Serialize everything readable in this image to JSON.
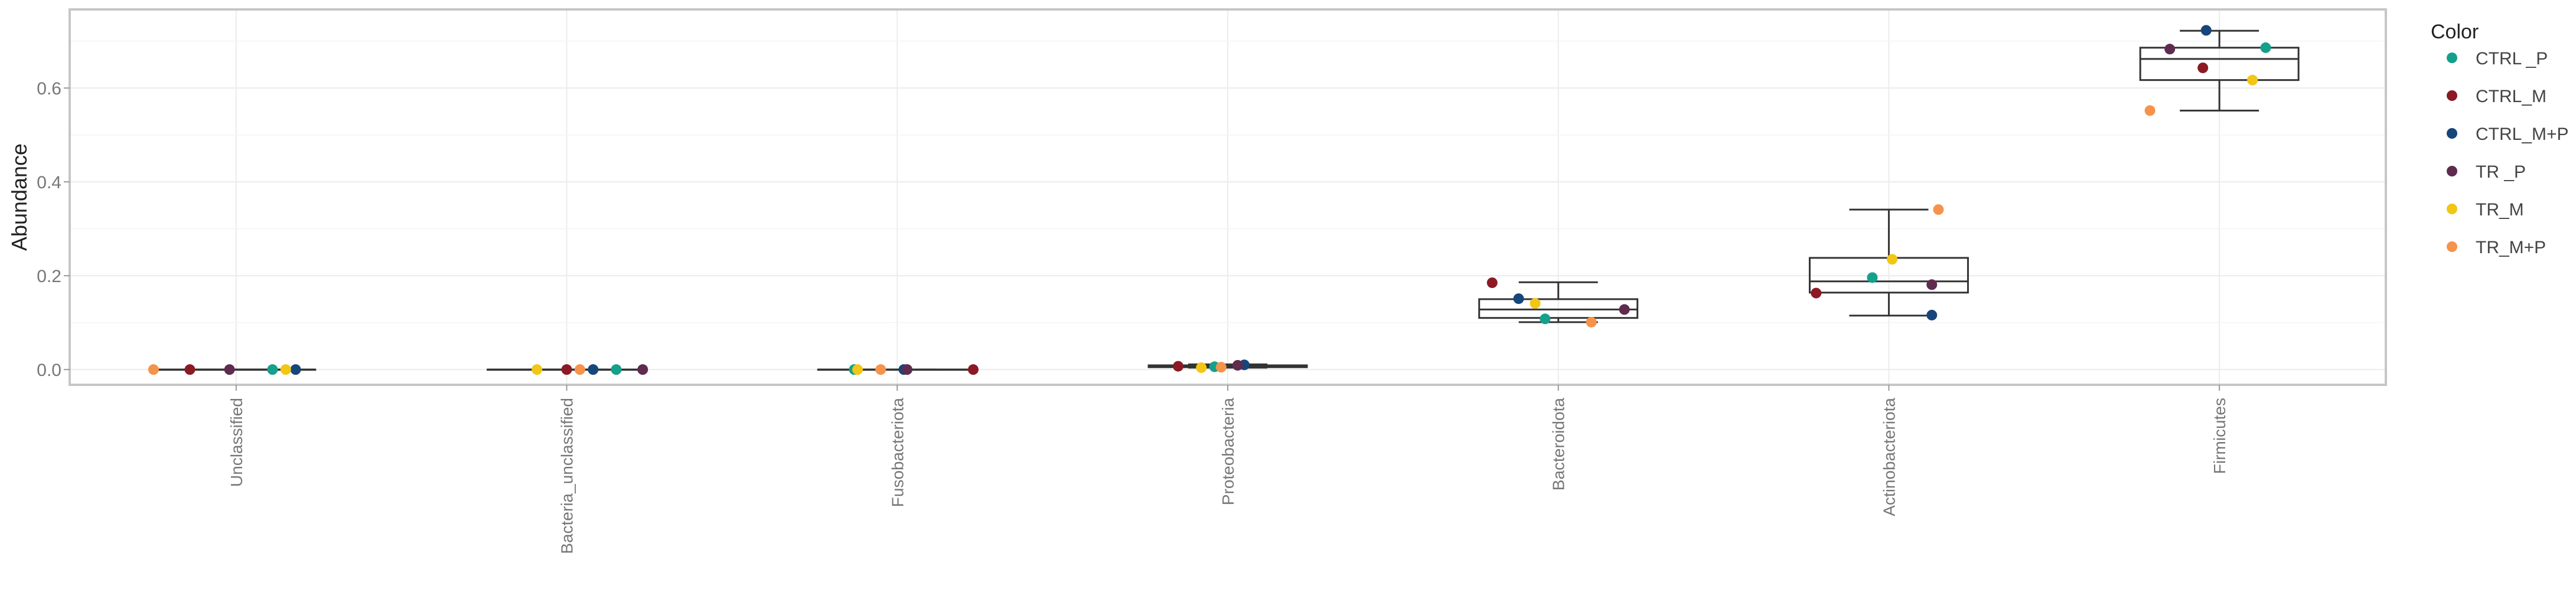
{
  "chart_data": {
    "type": "boxplot",
    "categories": [
      "Unclassified",
      "Bacteria_unclassified",
      "Fusobacteriota",
      "Proteobacteria",
      "Bacteroidota",
      "Actinobacteriota",
      "Firmicutes"
    ],
    "ylabel": "Abundance",
    "xlabel": "",
    "ylim": [
      -0.03,
      0.765
    ],
    "yticks": [
      "0.0",
      "0.2",
      "0.4",
      "0.6"
    ],
    "grid": true,
    "legend": {
      "title": "Color",
      "position": "right",
      "entries": [
        {
          "name": "CTRL _P",
          "color": "#14a08a"
        },
        {
          "name": "CTRL_M",
          "color": "#8b1a24"
        },
        {
          "name": "CTRL_M+P",
          "color": "#16467a"
        },
        {
          "name": "TR _P",
          "color": "#5f2b4e"
        },
        {
          "name": "TR_M",
          "color": "#f2c614"
        },
        {
          "name": "TR_M+P",
          "color": "#f5934a"
        }
      ]
    },
    "boxes": [
      {
        "category": "Unclassified",
        "min": 0.0,
        "q1": 0.0,
        "median": 0.0,
        "q3": 0.0,
        "max": 0.0
      },
      {
        "category": "Bacteria_unclassified",
        "min": 0.0,
        "q1": 0.0,
        "median": 0.0,
        "q3": 0.0,
        "max": 0.0
      },
      {
        "category": "Fusobacteriota",
        "min": 0.0,
        "q1": 0.0,
        "median": 0.0,
        "q3": 0.0,
        "max": 0.0
      },
      {
        "category": "Proteobacteria",
        "min": 0.004,
        "q1": 0.005,
        "median": 0.007,
        "q3": 0.009,
        "max": 0.011
      },
      {
        "category": "Bacteroidota",
        "min": 0.101,
        "q1": 0.11,
        "median": 0.128,
        "q3": 0.15,
        "max": 0.186
      },
      {
        "category": "Actinobacteriota",
        "min": 0.115,
        "q1": 0.164,
        "median": 0.188,
        "q3": 0.238,
        "max": 0.341
      },
      {
        "category": "Firmicutes",
        "min": 0.552,
        "q1": 0.617,
        "median": 0.662,
        "q3": 0.686,
        "max": 0.722
      }
    ],
    "points": [
      {
        "category": "Unclassified",
        "group": "CTRL _P",
        "x_offset": 0.11,
        "value": 0.0
      },
      {
        "category": "Unclassified",
        "group": "CTRL_M",
        "x_offset": -0.14,
        "value": 0.0
      },
      {
        "category": "Unclassified",
        "group": "CTRL_M+P",
        "x_offset": 0.18,
        "value": 0.0
      },
      {
        "category": "Unclassified",
        "group": "TR _P",
        "x_offset": -0.02,
        "value": 0.0
      },
      {
        "category": "Unclassified",
        "group": "TR_M",
        "x_offset": 0.15,
        "value": 0.0
      },
      {
        "category": "Unclassified",
        "group": "TR_M+P",
        "x_offset": -0.25,
        "value": 0.0
      },
      {
        "category": "Bacteria_unclassified",
        "group": "CTRL _P",
        "x_offset": 0.15,
        "value": 0.0
      },
      {
        "category": "Bacteria_unclassified",
        "group": "CTRL_M",
        "x_offset": 0.0,
        "value": 0.0
      },
      {
        "category": "Bacteria_unclassified",
        "group": "CTRL_M+P",
        "x_offset": 0.08,
        "value": 0.0
      },
      {
        "category": "Bacteria_unclassified",
        "group": "TR _P",
        "x_offset": 0.23,
        "value": 0.0
      },
      {
        "category": "Bacteria_unclassified",
        "group": "TR_M",
        "x_offset": -0.09,
        "value": 0.0
      },
      {
        "category": "Bacteria_unclassified",
        "group": "TR_M+P",
        "x_offset": 0.04,
        "value": 0.0
      },
      {
        "category": "Fusobacteriota",
        "group": "CTRL _P",
        "x_offset": -0.13,
        "value": 0.0
      },
      {
        "category": "Fusobacteriota",
        "group": "CTRL_M",
        "x_offset": 0.23,
        "value": 0.0
      },
      {
        "category": "Fusobacteriota",
        "group": "CTRL_M+P",
        "x_offset": 0.02,
        "value": 0.0
      },
      {
        "category": "Fusobacteriota",
        "group": "TR _P",
        "x_offset": 0.03,
        "value": 0.0
      },
      {
        "category": "Fusobacteriota",
        "group": "TR_M",
        "x_offset": -0.12,
        "value": 0.0
      },
      {
        "category": "Fusobacteriota",
        "group": "TR_M+P",
        "x_offset": -0.05,
        "value": 0.0
      },
      {
        "category": "Proteobacteria",
        "group": "CTRL _P",
        "x_offset": -0.04,
        "value": 0.006
      },
      {
        "category": "Proteobacteria",
        "group": "CTRL_M",
        "x_offset": -0.15,
        "value": 0.007
      },
      {
        "category": "Proteobacteria",
        "group": "CTRL_M+P",
        "x_offset": 0.05,
        "value": 0.01
      },
      {
        "category": "Proteobacteria",
        "group": "TR _P",
        "x_offset": 0.03,
        "value": 0.009
      },
      {
        "category": "Proteobacteria",
        "group": "TR_M",
        "x_offset": -0.08,
        "value": 0.004
      },
      {
        "category": "Proteobacteria",
        "group": "TR_M+P",
        "x_offset": -0.02,
        "value": 0.005
      },
      {
        "category": "Bacteroidota",
        "group": "CTRL _P",
        "x_offset": -0.04,
        "value": 0.108
      },
      {
        "category": "Bacteroidota",
        "group": "CTRL_M",
        "x_offset": -0.2,
        "value": 0.185
      },
      {
        "category": "Bacteroidota",
        "group": "CTRL_M+P",
        "x_offset": -0.12,
        "value": 0.151
      },
      {
        "category": "Bacteroidota",
        "group": "TR _P",
        "x_offset": 0.2,
        "value": 0.128
      },
      {
        "category": "Bacteroidota",
        "group": "TR_M",
        "x_offset": -0.07,
        "value": 0.141
      },
      {
        "category": "Bacteroidota",
        "group": "TR_M+P",
        "x_offset": 0.1,
        "value": 0.101
      },
      {
        "category": "Actinobacteriota",
        "group": "CTRL _P",
        "x_offset": -0.05,
        "value": 0.196
      },
      {
        "category": "Actinobacteriota",
        "group": "CTRL_M",
        "x_offset": -0.22,
        "value": 0.163
      },
      {
        "category": "Actinobacteriota",
        "group": "CTRL_M+P",
        "x_offset": 0.13,
        "value": 0.116
      },
      {
        "category": "Actinobacteriota",
        "group": "TR _P",
        "x_offset": 0.13,
        "value": 0.181
      },
      {
        "category": "Actinobacteriota",
        "group": "TR_M",
        "x_offset": 0.01,
        "value": 0.235
      },
      {
        "category": "Actinobacteriota",
        "group": "TR_M+P",
        "x_offset": 0.15,
        "value": 0.341
      },
      {
        "category": "Firmicutes",
        "group": "CTRL _P",
        "x_offset": 0.14,
        "value": 0.686
      },
      {
        "category": "Firmicutes",
        "group": "CTRL_M",
        "x_offset": -0.05,
        "value": 0.643
      },
      {
        "category": "Firmicutes",
        "group": "CTRL_M+P",
        "x_offset": -0.04,
        "value": 0.723
      },
      {
        "category": "Firmicutes",
        "group": "TR _P",
        "x_offset": -0.15,
        "value": 0.683
      },
      {
        "category": "Firmicutes",
        "group": "TR_M",
        "x_offset": 0.1,
        "value": 0.617
      },
      {
        "category": "Firmicutes",
        "group": "TR_M+P",
        "x_offset": -0.21,
        "value": 0.552
      }
    ]
  }
}
